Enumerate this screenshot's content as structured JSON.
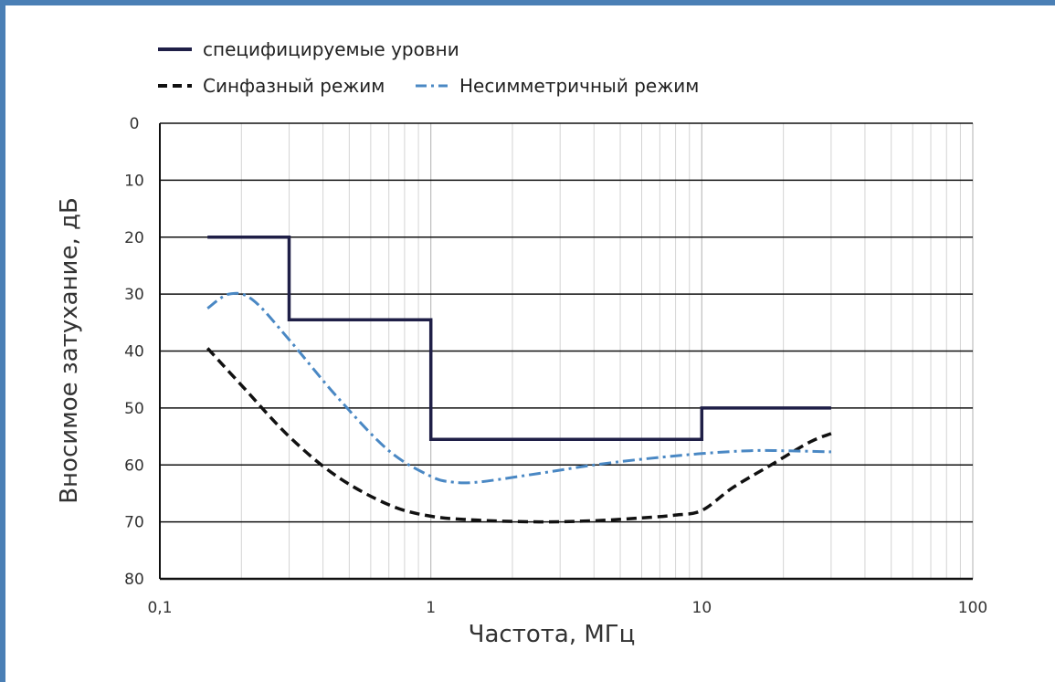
{
  "chart_data": {
    "type": "line",
    "title": "",
    "xlabel": "Частота, МГц",
    "ylabel": "Вносимое затухание, дБ",
    "x_scale": "log",
    "xlim": [
      0.1,
      100
    ],
    "ylim": [
      0,
      80
    ],
    "y_inverted": true,
    "x_ticks": [
      "0,1",
      "1",
      "10",
      "100"
    ],
    "y_ticks": [
      "0",
      "10",
      "20",
      "30",
      "40",
      "50",
      "60",
      "70",
      "80"
    ],
    "grid": true,
    "legend_position": "top-left",
    "series": [
      {
        "name": "специфицируемые уровни",
        "style": "solid",
        "color": "#1f1f47",
        "points": [
          [
            0.15,
            20
          ],
          [
            0.3,
            20
          ],
          [
            0.3,
            34.5
          ],
          [
            1,
            34.5
          ],
          [
            1,
            55.5
          ],
          [
            10,
            55.5
          ],
          [
            10,
            50
          ],
          [
            30,
            50
          ]
        ]
      },
      {
        "name": "Синфазный режим",
        "style": "dashed",
        "color": "#111111",
        "points": [
          [
            0.15,
            39.5
          ],
          [
            0.2,
            46
          ],
          [
            0.3,
            55
          ],
          [
            0.45,
            62
          ],
          [
            0.7,
            67
          ],
          [
            1,
            69
          ],
          [
            1.5,
            69.7
          ],
          [
            2.5,
            70
          ],
          [
            4,
            69.8
          ],
          [
            6,
            69.3
          ],
          [
            8,
            68.8
          ],
          [
            10,
            68
          ],
          [
            13,
            64
          ],
          [
            18,
            60
          ],
          [
            25,
            56
          ],
          [
            30,
            54.5
          ]
        ]
      },
      {
        "name": "Несимметричный режим",
        "style": "dashdot",
        "color": "#4a88c4",
        "points": [
          [
            0.15,
            32.5
          ],
          [
            0.18,
            30
          ],
          [
            0.22,
            31
          ],
          [
            0.3,
            38
          ],
          [
            0.45,
            48
          ],
          [
            0.7,
            57.5
          ],
          [
            1,
            62
          ],
          [
            1.2,
            63
          ],
          [
            1.5,
            63
          ],
          [
            2.5,
            61.5
          ],
          [
            4,
            60
          ],
          [
            6,
            59
          ],
          [
            10,
            58
          ],
          [
            15,
            57.5
          ],
          [
            20,
            57.5
          ],
          [
            30,
            57.7
          ]
        ]
      }
    ]
  }
}
